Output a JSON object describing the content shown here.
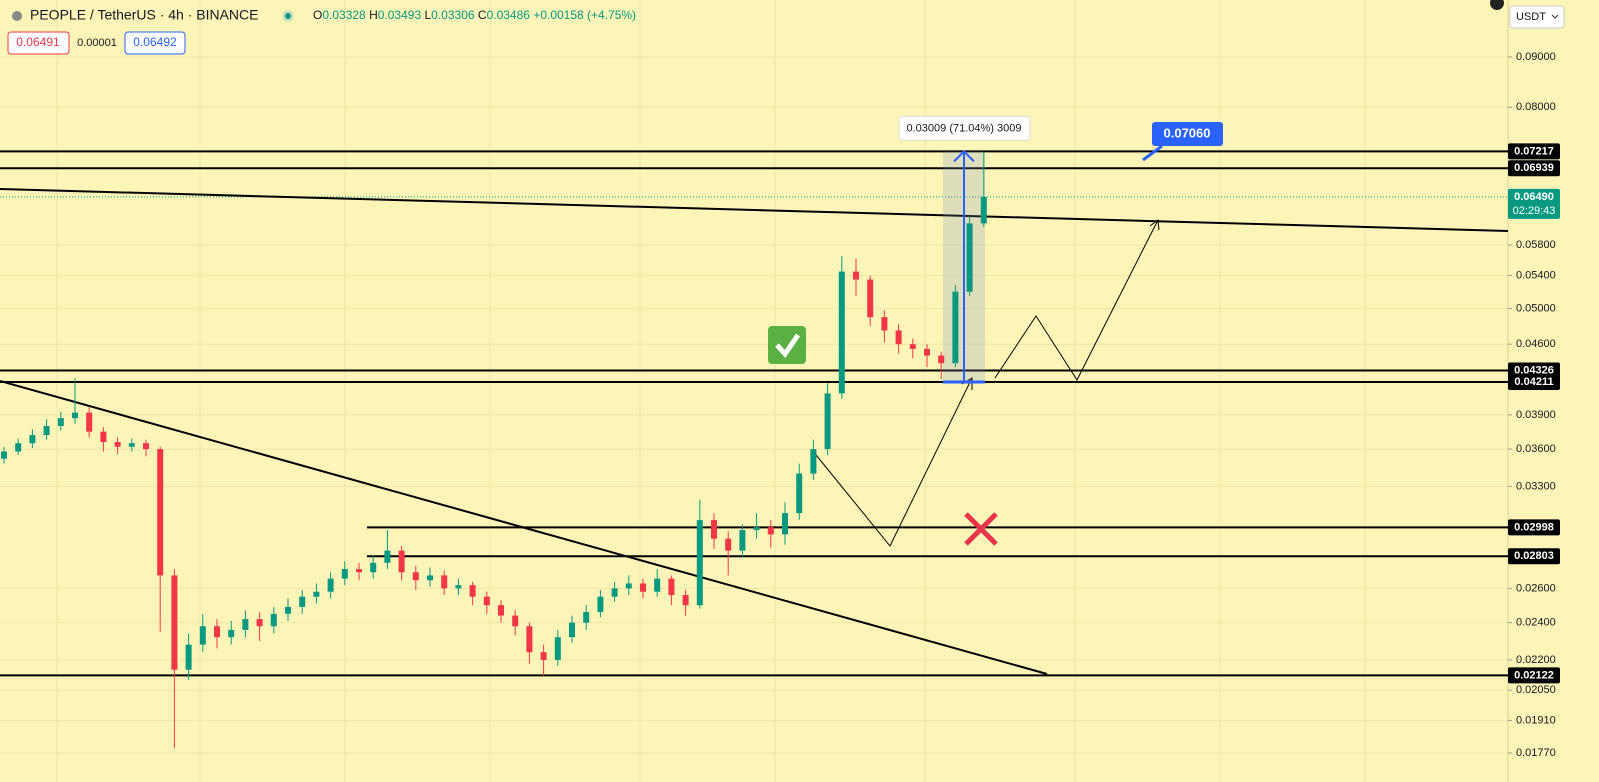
{
  "header": {
    "symbol": "PEOPLE / TetherUS · 4h · BINANCE",
    "ohlc": [
      {
        "key": "O",
        "value": "0.03328"
      },
      {
        "key": "H",
        "value": "0.03493"
      },
      {
        "key": "L",
        "value": "0.03306"
      },
      {
        "key": "C",
        "value": "0.03486"
      }
    ],
    "change": "+0.00158 (+4.75%)",
    "sell": "0.06491",
    "spread": "0.00001",
    "buy": "0.06492",
    "currency": "USDT"
  },
  "chart_data": {
    "type": "candlestick",
    "log": true,
    "grid": true,
    "up_color": "#089981",
    "down_color": "#f23645",
    "ylim": [
      0.01654,
      0.1028
    ],
    "yticks": [
      {
        "value": 0.09,
        "label": "0.09000"
      },
      {
        "value": 0.08,
        "label": "0.08000"
      },
      {
        "value": 0.058,
        "label": "0.05800"
      },
      {
        "value": 0.054,
        "label": "0.05400"
      },
      {
        "value": 0.05,
        "label": "0.05000"
      },
      {
        "value": 0.046,
        "label": "0.04600"
      },
      {
        "value": 0.039,
        "label": "0.03900"
      },
      {
        "value": 0.036,
        "label": "0.03600"
      },
      {
        "value": 0.033,
        "label": "0.03300"
      },
      {
        "value": 0.026,
        "label": "0.02600"
      },
      {
        "value": 0.024,
        "label": "0.02400"
      },
      {
        "value": 0.022,
        "label": "0.02200"
      },
      {
        "value": 0.0205,
        "label": "0.02050"
      },
      {
        "value": 0.0191,
        "label": "0.01910"
      },
      {
        "value": 0.0177,
        "label": "0.01770"
      }
    ],
    "levels": [
      {
        "value": 0.07217,
        "label": "0.07217"
      },
      {
        "value": 0.06939,
        "label": "0.06939"
      },
      {
        "value": 0.04326,
        "label": "0.04326"
      },
      {
        "value": 0.04211,
        "label": "0.04211"
      },
      {
        "value": 0.02998,
        "label": "0.02998"
      },
      {
        "value": 0.02803,
        "label": "0.02803"
      },
      {
        "value": 0.02122,
        "label": "0.02122"
      }
    ],
    "current_price": {
      "value": 0.0649,
      "label": "0.06490"
    },
    "countdown": "02:29:43",
    "measure_label": "0.03009 (71.04%) 3009",
    "target_label": "0.07060",
    "open": [
      0.0352,
      0.0358,
      0.0365,
      0.0372,
      0.038,
      0.0387,
      0.0392,
      0.0375,
      0.0366,
      0.0362,
      0.0365,
      0.036,
      0.0268,
      0.0215,
      0.0228,
      0.0238,
      0.0232,
      0.0236,
      0.0242,
      0.0238,
      0.0245,
      0.0249,
      0.0255,
      0.0258,
      0.0266,
      0.0272,
      0.027,
      0.0276,
      0.0284,
      0.027,
      0.0265,
      0.0268,
      0.026,
      0.0262,
      0.0255,
      0.025,
      0.0244,
      0.0238,
      0.0224,
      0.022,
      0.0232,
      0.024,
      0.0246,
      0.0255,
      0.026,
      0.0263,
      0.0258,
      0.0266,
      0.0256,
      0.025,
      0.0305,
      0.0292,
      0.0284,
      0.0298,
      0.03,
      0.0295,
      0.031,
      0.034,
      0.036,
      0.041,
      0.0545,
      0.0535,
      0.049,
      0.0475,
      0.046,
      0.0455,
      0.0448,
      0.044,
      0.052,
      0.061
    ],
    "high": [
      0.0362,
      0.0369,
      0.0377,
      0.0386,
      0.0393,
      0.0425,
      0.0397,
      0.0379,
      0.037,
      0.0369,
      0.0368,
      0.0362,
      0.0272,
      0.0234,
      0.0245,
      0.0242,
      0.0241,
      0.0247,
      0.0246,
      0.0249,
      0.0254,
      0.0259,
      0.0263,
      0.027,
      0.0277,
      0.0276,
      0.0281,
      0.0298,
      0.0287,
      0.0274,
      0.0273,
      0.0271,
      0.0266,
      0.0264,
      0.0258,
      0.0253,
      0.0247,
      0.024,
      0.0228,
      0.0236,
      0.0244,
      0.025,
      0.0259,
      0.0264,
      0.0268,
      0.0266,
      0.0272,
      0.0268,
      0.0259,
      0.032,
      0.031,
      0.0297,
      0.0302,
      0.031,
      0.0305,
      0.0318,
      0.0348,
      0.0368,
      0.042,
      0.0565,
      0.0562,
      0.054,
      0.0498,
      0.0482,
      0.0466,
      0.046,
      0.0452,
      0.0528,
      0.062,
      0.0721
    ],
    "low": [
      0.0348,
      0.0355,
      0.0361,
      0.0368,
      0.0376,
      0.0382,
      0.037,
      0.0358,
      0.0356,
      0.0358,
      0.0354,
      0.0235,
      0.0179,
      0.021,
      0.0224,
      0.0226,
      0.0228,
      0.0232,
      0.023,
      0.0234,
      0.0241,
      0.0245,
      0.0251,
      0.0254,
      0.0262,
      0.0265,
      0.0266,
      0.0272,
      0.0265,
      0.0259,
      0.0261,
      0.0256,
      0.0256,
      0.025,
      0.0245,
      0.024,
      0.0233,
      0.0218,
      0.0212,
      0.0217,
      0.0229,
      0.0236,
      0.0243,
      0.0252,
      0.0256,
      0.0254,
      0.0255,
      0.025,
      0.0244,
      0.0248,
      0.0285,
      0.0268,
      0.028,
      0.0292,
      0.0286,
      0.0288,
      0.0305,
      0.0335,
      0.0355,
      0.0405,
      0.0515,
      0.048,
      0.0462,
      0.045,
      0.0445,
      0.0436,
      0.0424,
      0.0436,
      0.0515,
      0.0605
    ],
    "close": [
      0.0358,
      0.0365,
      0.0372,
      0.038,
      0.0387,
      0.0392,
      0.0375,
      0.0366,
      0.0362,
      0.0365,
      0.036,
      0.0268,
      0.0215,
      0.0228,
      0.0238,
      0.0232,
      0.0236,
      0.0242,
      0.0238,
      0.0245,
      0.0249,
      0.0255,
      0.0258,
      0.0266,
      0.0272,
      0.027,
      0.0276,
      0.0284,
      0.027,
      0.0265,
      0.0268,
      0.026,
      0.0262,
      0.0255,
      0.025,
      0.0244,
      0.0238,
      0.0224,
      0.022,
      0.0232,
      0.024,
      0.0246,
      0.0255,
      0.026,
      0.0263,
      0.0258,
      0.0266,
      0.0256,
      0.025,
      0.0305,
      0.0292,
      0.0284,
      0.0298,
      0.03,
      0.0295,
      0.031,
      0.034,
      0.036,
      0.041,
      0.0545,
      0.0535,
      0.049,
      0.0475,
      0.046,
      0.0455,
      0.0448,
      0.044,
      0.052,
      0.061,
      0.0649
    ]
  }
}
